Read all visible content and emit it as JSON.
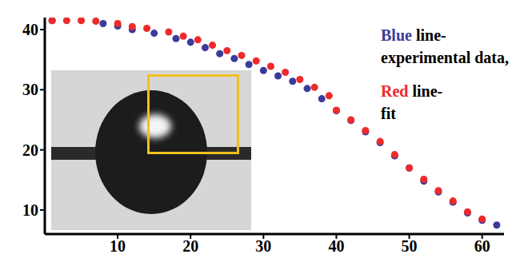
{
  "chart_data": {
    "type": "scatter",
    "xlim": [
      0,
      63
    ],
    "xticks": [
      10,
      20,
      30,
      40,
      50,
      60
    ],
    "ylim": [
      6,
      42
    ],
    "yticks": [
      10,
      20,
      30,
      40
    ],
    "grid": false,
    "legend": "top-right",
    "series": [
      {
        "name": "Blue line-experimental data,",
        "color": "#3b3b9a",
        "marker": "circle",
        "x": [
          1,
          8,
          10,
          12,
          15,
          18,
          20,
          22,
          24,
          26,
          28,
          30,
          32,
          34,
          36,
          38,
          40,
          42,
          44,
          46,
          48,
          50,
          52,
          54,
          56,
          58,
          60,
          62
        ],
        "values": [
          41.5,
          41.0,
          40.6,
          40.0,
          39.4,
          38.5,
          37.9,
          37.0,
          36.0,
          35.2,
          34.2,
          33.2,
          32.3,
          31.4,
          30.2,
          28.5,
          26.5,
          24.9,
          23.0,
          21.2,
          19.0,
          17.0,
          14.8,
          13.0,
          11.3,
          9.5,
          8.3,
          7.5
        ]
      },
      {
        "name": "Red line-fit",
        "color": "#ee2a2a",
        "marker": "circle",
        "x": [
          1,
          3,
          5,
          7,
          10,
          12,
          14,
          17,
          19,
          21,
          23,
          25,
          27,
          29,
          31,
          33,
          35,
          37,
          39,
          40,
          42,
          44,
          46,
          48,
          50,
          52,
          54,
          56,
          58,
          60
        ],
        "values": [
          41.5,
          41.5,
          41.5,
          41.4,
          41.0,
          40.5,
          40.2,
          39.6,
          38.9,
          38.3,
          37.4,
          36.5,
          35.7,
          34.8,
          33.9,
          32.9,
          31.7,
          30.4,
          29.0,
          26.6,
          25.0,
          23.2,
          21.4,
          19.2,
          17.0,
          15.1,
          13.2,
          11.5,
          9.7,
          8.5
        ]
      }
    ]
  }
}
